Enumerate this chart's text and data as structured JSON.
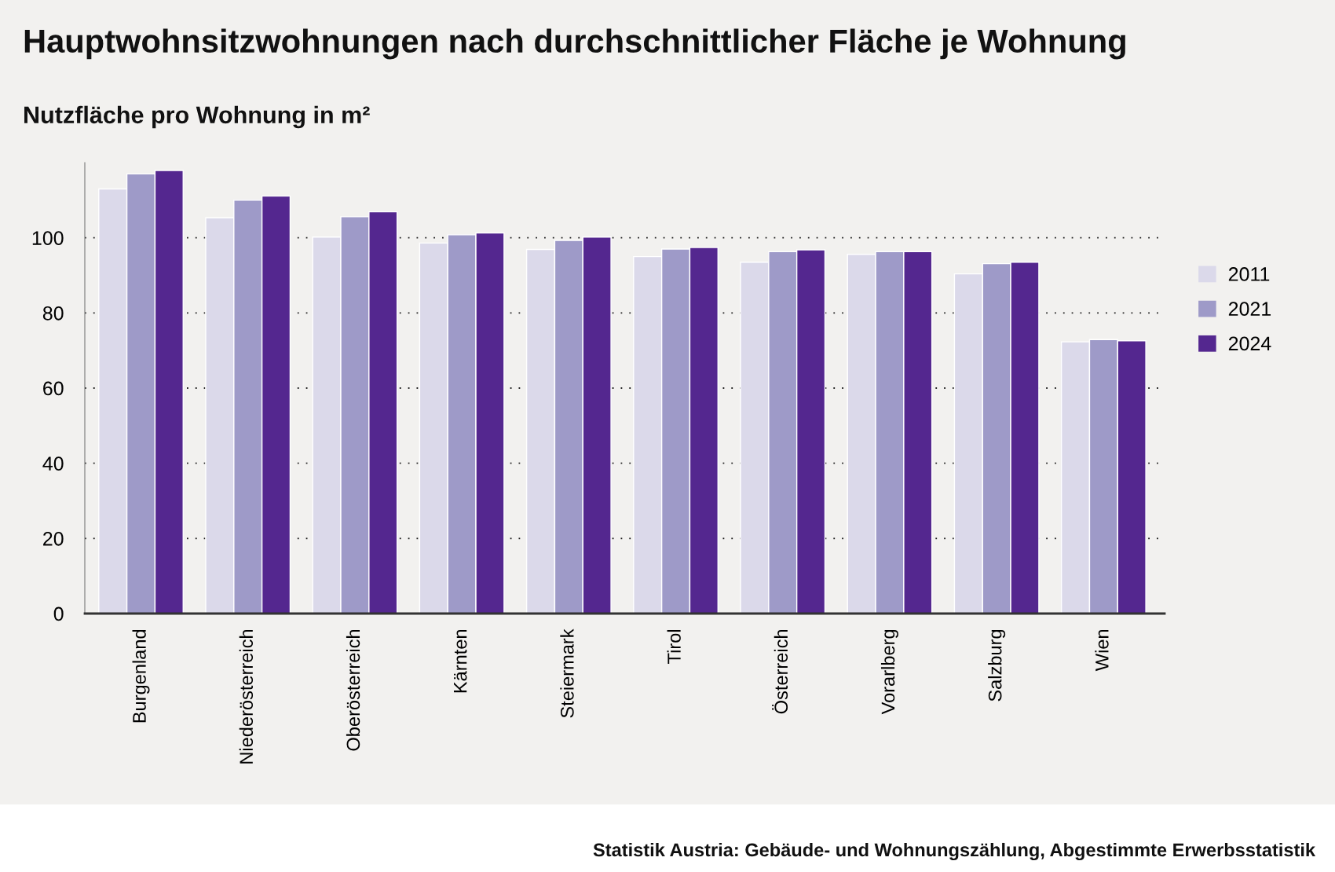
{
  "chart_data": {
    "type": "bar",
    "title": "Hauptwohnsitzwohnungen nach durchschnittlicher Fläche je Wohnung",
    "subtitle": "Nutzfläche pro Wohnung in m²",
    "categories": [
      "Burgenland",
      "Niederösterreich",
      "Oberösterreich",
      "Kärnten",
      "Steiermark",
      "Tirol",
      "Österreich",
      "Vorarlberg",
      "Salzburg",
      "Wien"
    ],
    "series": [
      {
        "name": "2011",
        "color": "#dbd9ea",
        "values": [
          113.0,
          105.3,
          100.2,
          98.6,
          96.9,
          95.0,
          93.5,
          95.6,
          90.4,
          72.3
        ]
      },
      {
        "name": "2021",
        "color": "#9e9ac8",
        "values": [
          117.0,
          110.0,
          105.6,
          100.8,
          99.3,
          97.0,
          96.3,
          96.3,
          93.1,
          72.9
        ]
      },
      {
        "name": "2024",
        "color": "#54278f",
        "values": [
          117.9,
          111.1,
          106.9,
          101.3,
          100.2,
          97.4,
          96.8,
          96.3,
          93.5,
          72.6
        ]
      }
    ],
    "ylim": [
      0,
      120
    ],
    "yticks": [
      0,
      20,
      40,
      60,
      80,
      100
    ],
    "grid": "y",
    "legend": "right",
    "annotations": [
      "Statistik Austria: Gebäude- und Wohnungszählung, Abgestimmte Erwerbsstatistik"
    ]
  }
}
